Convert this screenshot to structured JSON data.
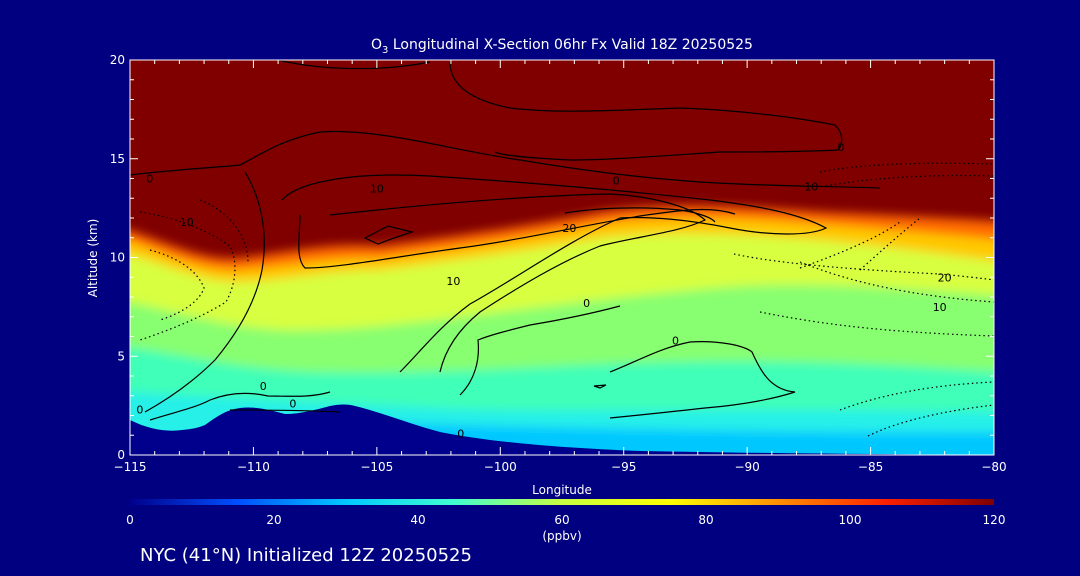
{
  "chart_data": {
    "type": "heatmap",
    "title": {
      "prefix": "O",
      "subscript": "3",
      "rest": " Longitudinal X-Section 06hr  Fx Valid 18Z 20250525"
    },
    "xlabel": "Longitude",
    "ylabel": "Altitude (km)",
    "xlim": [
      -115,
      -80
    ],
    "ylim": [
      0,
      20
    ],
    "x_ticks": [
      -115,
      -110,
      -105,
      -100,
      -95,
      -90,
      -85,
      -80
    ],
    "x_tick_labels": [
      "−115",
      "−110",
      "−105",
      "−100",
      "−95",
      "−90",
      "−85",
      "−80"
    ],
    "y_ticks": [
      0,
      5,
      10,
      15,
      20
    ],
    "y_tick_labels": [
      "0",
      "5",
      "10",
      "15",
      "20"
    ],
    "colorbar": {
      "label": "(ppbv)",
      "range": [
        0,
        120
      ],
      "ticks": [
        0,
        20,
        40,
        60,
        80,
        100,
        120
      ],
      "tick_labels": [
        "0",
        "20",
        "40",
        "60",
        "80",
        "100",
        "120"
      ],
      "colors": [
        "#00008c",
        "#0050ff",
        "#00c8ff",
        "#40ffd0",
        "#c8ff40",
        "#ffff00",
        "#ff9000",
        "#ff2000",
        "#800000"
      ]
    },
    "contour_labels": [
      {
        "text": "0",
        "lon": -114.2,
        "alt": 14.0
      },
      {
        "text": "10",
        "lon": -112.7,
        "alt": 11.8
      },
      {
        "text": "10",
        "lon": -105.0,
        "alt": 13.5
      },
      {
        "text": "20",
        "lon": -97.2,
        "alt": 11.5
      },
      {
        "text": "0",
        "lon": -95.3,
        "alt": 13.9
      },
      {
        "text": "10",
        "lon": -87.4,
        "alt": 13.6
      },
      {
        "text": "0",
        "lon": -86.2,
        "alt": 15.6
      },
      {
        "text": "10",
        "lon": -101.9,
        "alt": 8.8
      },
      {
        "text": "0",
        "lon": -96.5,
        "alt": 7.7
      },
      {
        "text": "0",
        "lon": -92.9,
        "alt": 5.8
      },
      {
        "text": "20",
        "lon": -82.0,
        "alt": 9.0
      },
      {
        "text": "10",
        "lon": -82.2,
        "alt": 7.5
      },
      {
        "text": "0",
        "lon": -109.6,
        "alt": 3.5
      },
      {
        "text": "0",
        "lon": -114.6,
        "alt": 2.3
      },
      {
        "text": "0",
        "lon": -108.4,
        "alt": 2.6
      },
      {
        "text": "0",
        "lon": -101.6,
        "alt": 1.1
      }
    ],
    "footer": "NYC (41°N) Initialized 12Z 20250525"
  }
}
